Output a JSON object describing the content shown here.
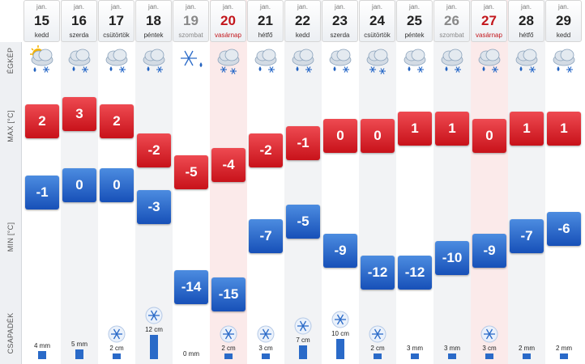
{
  "row_labels": {
    "icon": "ÉGKÉP",
    "max": "MAX [°C]",
    "min": "MIN [°C]",
    "precip": "CSAPADÉK"
  },
  "days": [
    {
      "month": "jan.",
      "day": "15",
      "weekday": "kedd",
      "kind": "weekday",
      "icon": "partly-sunny-rain-snow-icon",
      "max": 2,
      "min": -1,
      "precip_label": "4 mm",
      "precip_amount": 4,
      "precip_type": "rain"
    },
    {
      "month": "jan.",
      "day": "16",
      "weekday": "szerda",
      "kind": "weekday",
      "icon": "cloud-rain-snow-icon",
      "max": 3,
      "min": 0,
      "precip_label": "5 mm",
      "precip_amount": 5,
      "precip_type": "rain"
    },
    {
      "month": "jan.",
      "day": "17",
      "weekday": "csütörtök",
      "kind": "weekday",
      "icon": "cloud-rain-snow-icon",
      "max": 2,
      "min": 0,
      "precip_label": "2 cm",
      "precip_amount": 2,
      "precip_type": "snow"
    },
    {
      "month": "jan.",
      "day": "18",
      "weekday": "péntek",
      "kind": "weekday",
      "icon": "cloud-rain-snow-icon",
      "max": -2,
      "min": -3,
      "precip_label": "12 cm",
      "precip_amount": 12,
      "precip_type": "snow"
    },
    {
      "month": "jan.",
      "day": "19",
      "weekday": "szombat",
      "kind": "saturday",
      "icon": "snowflake-drop-icon",
      "max": -5,
      "min": -14,
      "precip_label": "0 mm",
      "precip_amount": 0,
      "precip_type": "none"
    },
    {
      "month": "jan.",
      "day": "20",
      "weekday": "vasárnap",
      "kind": "sunday",
      "icon": "cloud-snow-icon",
      "max": -4,
      "min": -15,
      "precip_label": "2 cm",
      "precip_amount": 2,
      "precip_type": "snow"
    },
    {
      "month": "jan.",
      "day": "21",
      "weekday": "hétfő",
      "kind": "weekday",
      "icon": "cloud-rain-snow-icon",
      "max": -2,
      "min": -7,
      "precip_label": "3 cm",
      "precip_amount": 3,
      "precip_type": "snow"
    },
    {
      "month": "jan.",
      "day": "22",
      "weekday": "kedd",
      "kind": "weekday",
      "icon": "cloud-rain-snow-icon",
      "max": -1,
      "min": -5,
      "precip_label": "7 cm",
      "precip_amount": 7,
      "precip_type": "snow"
    },
    {
      "month": "jan.",
      "day": "23",
      "weekday": "szerda",
      "kind": "weekday",
      "icon": "cloud-rain-snow-icon",
      "max": 0,
      "min": -9,
      "precip_label": "10 cm",
      "precip_amount": 10,
      "precip_type": "snow"
    },
    {
      "month": "jan.",
      "day": "24",
      "weekday": "csütörtök",
      "kind": "weekday",
      "icon": "cloud-snow-icon",
      "max": 0,
      "min": -12,
      "precip_label": "2 cm",
      "precip_amount": 2,
      "precip_type": "snow"
    },
    {
      "month": "jan.",
      "day": "25",
      "weekday": "péntek",
      "kind": "weekday",
      "icon": "cloud-rain-snow-icon",
      "max": 1,
      "min": -12,
      "precip_label": "3 mm",
      "precip_amount": 3,
      "precip_type": "rain"
    },
    {
      "month": "jan.",
      "day": "26",
      "weekday": "szombat",
      "kind": "saturday",
      "icon": "cloud-rain-snow-icon",
      "max": 1,
      "min": -10,
      "precip_label": "3 mm",
      "precip_amount": 3,
      "precip_type": "rain"
    },
    {
      "month": "jan.",
      "day": "27",
      "weekday": "vasárnap",
      "kind": "sunday",
      "icon": "cloud-rain-snow-icon",
      "max": 0,
      "min": -9,
      "precip_label": "3 cm",
      "precip_amount": 3,
      "precip_type": "snow"
    },
    {
      "month": "jan.",
      "day": "28",
      "weekday": "hétfő",
      "kind": "weekday",
      "icon": "cloud-rain-snow-icon",
      "max": 1,
      "min": -7,
      "precip_label": "2 mm",
      "precip_amount": 2,
      "precip_type": "rain"
    },
    {
      "month": "jan.",
      "day": "29",
      "weekday": "kedd",
      "kind": "weekday",
      "icon": "cloud-rain-snow-icon",
      "max": 1,
      "min": -6,
      "precip_label": "2 mm",
      "precip_amount": 2,
      "precip_type": "rain"
    }
  ],
  "colors": {
    "max_box": "#d81f26",
    "min_box": "#1f5fc4",
    "precip_bar": "#2a6ac8",
    "sunday_text": "#c3161c",
    "sunday_bg": "#fbeaea"
  }
}
